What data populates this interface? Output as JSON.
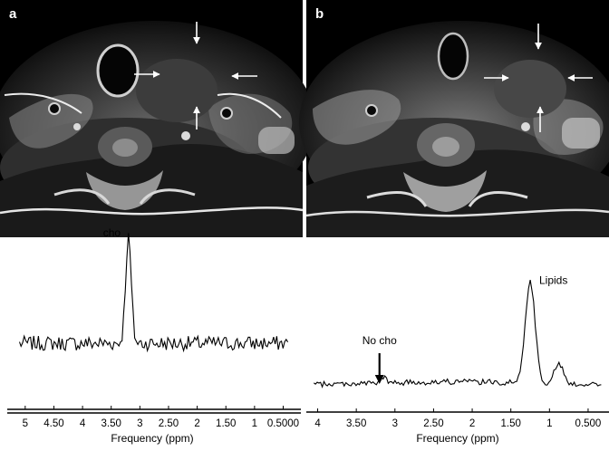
{
  "panels": {
    "a": {
      "label": "a"
    },
    "b": {
      "label": "b"
    }
  },
  "chart_data": [
    {
      "type": "line",
      "panel": "a",
      "xlabel": "Frequency (ppm)",
      "x_ticks": [
        "5",
        "4.50",
        "4",
        "3.50",
        "3",
        "2.50",
        "2",
        "1.50",
        "1",
        "0.5000"
      ],
      "x_tick_values": [
        5,
        4.5,
        4,
        3.5,
        3,
        2.5,
        2,
        1.5,
        1,
        0.5
      ],
      "xlim": [
        5.25,
        0.35
      ],
      "x_reversed": true,
      "annotations": [
        {
          "text": "cho",
          "x": 3.2
        }
      ],
      "peaks": [
        {
          "name": "cho",
          "x": 3.2,
          "height": 1.0,
          "width": 0.07
        }
      ],
      "baseline": 0.18,
      "noise_amplitude": 0.07,
      "series": [
        {
          "x_range": [
            5.1,
            0.42
          ]
        }
      ]
    },
    {
      "type": "line",
      "panel": "b",
      "xlabel": "Frequency (ppm)",
      "x_ticks": [
        "4",
        "3.50",
        "3",
        "2.50",
        "2",
        "1.50",
        "1",
        "0.500"
      ],
      "x_tick_values": [
        4,
        3.5,
        3,
        2.5,
        2,
        1.5,
        1,
        0.5
      ],
      "xlim": [
        4.1,
        0.3
      ],
      "x_reversed": true,
      "annotations": [
        {
          "text": "Lipids",
          "x": 1.25
        },
        {
          "text": "No cho",
          "x": 3.2
        }
      ],
      "peaks": [
        {
          "name": "Lipids",
          "x": 1.25,
          "height": 0.9,
          "width": 0.09
        },
        {
          "name": "shoulder",
          "x": 0.88,
          "height": 0.18,
          "width": 0.08
        },
        {
          "name": "small",
          "x": 3.15,
          "height": 0.05,
          "width": 0.05
        }
      ],
      "baseline": 0.04,
      "noise_amplitude": 0.025,
      "series": [
        {
          "x_range": [
            4.05,
            0.33
          ]
        }
      ]
    }
  ]
}
